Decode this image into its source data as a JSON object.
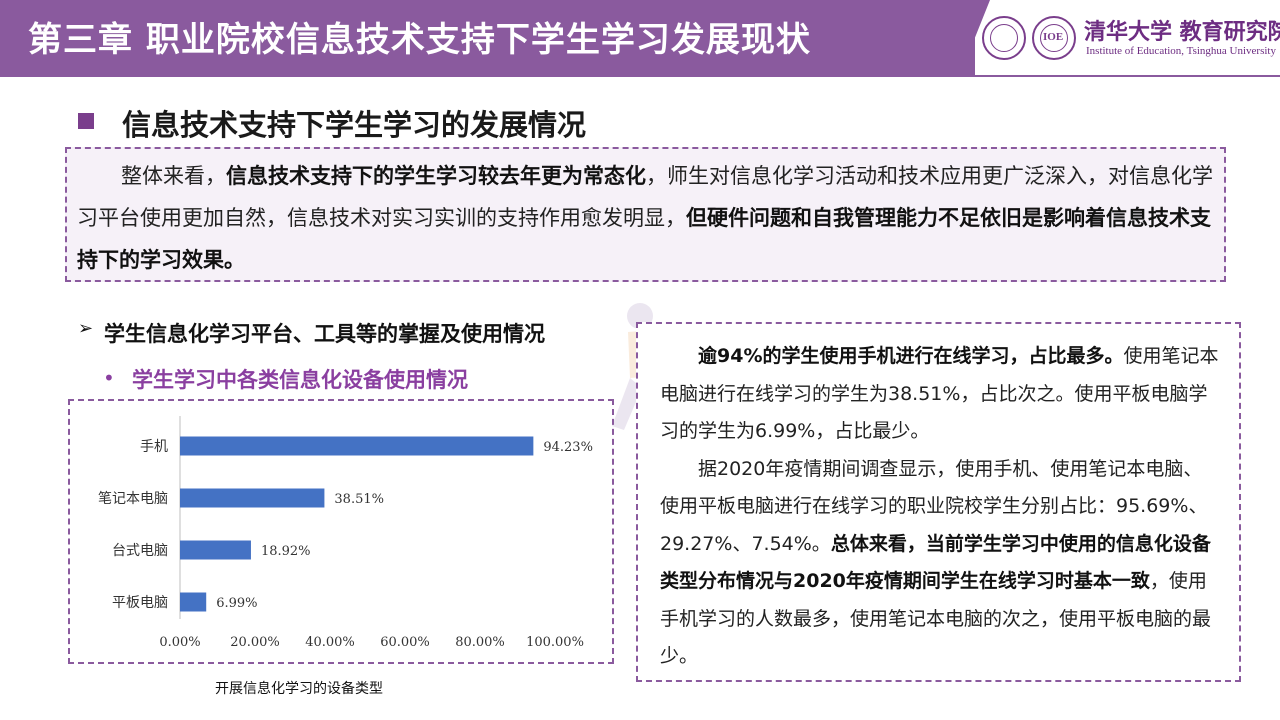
{
  "header": {
    "title": "第三章  职业院校信息技术支持下学生学习发展现状",
    "logo_name": "清华大学 教育研究院",
    "logo_sub": "Institute of Education, Tsinghua University",
    "logo_mark": "IOE"
  },
  "section": {
    "title": "信息技术支持下学生学习的发展情况"
  },
  "summary": {
    "part1": "整体来看，",
    "part2_bold": "信息技术支持下的学生学习较去年更为常态化",
    "part3": "，师生对信息化学习活动和技术应用更广泛深入，对信息化学习平台使用更加自然，信息技术对实习实训的支持作用愈发明显，",
    "part4_bold": "但硬件问题和自我管理能力不足依旧是影响着信息技术支持下的学习效果。"
  },
  "subheads": {
    "level1_marker": "➢",
    "level1": "学生信息化学习平台、工具等的掌握及使用情况",
    "level2_marker": "•",
    "level2": "学生学习中各类信息化设备使用情况"
  },
  "chart_data": {
    "type": "bar",
    "orientation": "horizontal",
    "categories": [
      "手机",
      "笔记本电脑",
      "台式电脑",
      "平板电脑"
    ],
    "values": [
      94.23,
      38.51,
      18.92,
      6.99
    ],
    "value_labels": [
      "94.23%",
      "38.51%",
      "18.92%",
      "6.99%"
    ],
    "x_ticks": [
      "0.00%",
      "20.00%",
      "40.00%",
      "60.00%",
      "80.00%",
      "100.00%"
    ],
    "xlim": [
      0,
      100
    ],
    "bar_color": "#4472c4",
    "grid": false,
    "caption": "开展信息化学习的设备类型"
  },
  "right_panel": {
    "p1_bold": "逾94%的学生使用手机进行在线学习，占比最多。",
    "p1_rest": "使用笔记本电脑进行在线学习的学生为38.51%，占比次之。使用平板电脑学习的学生为6.99%，占比最少。",
    "p2_start": "据2020年疫情期间调查显示，使用手机、使用笔记本电脑、使用平板电脑进行在线学习的职业院校学生分别占比：95.69%、29.27%、7.54%。",
    "p2_bold": "总体来看，当前学生学习中使用的信息化设备类型分布情况与2020年疫情期间学生在线学习时基本一致",
    "p2_end": "，使用手机学习的人数最多，使用笔记本电脑的次之，使用平板电脑的最少。"
  },
  "colors": {
    "brand_purple": "#8a5a9e",
    "accent_purple": "#8a3fa0",
    "bar_blue": "#4472c4"
  }
}
